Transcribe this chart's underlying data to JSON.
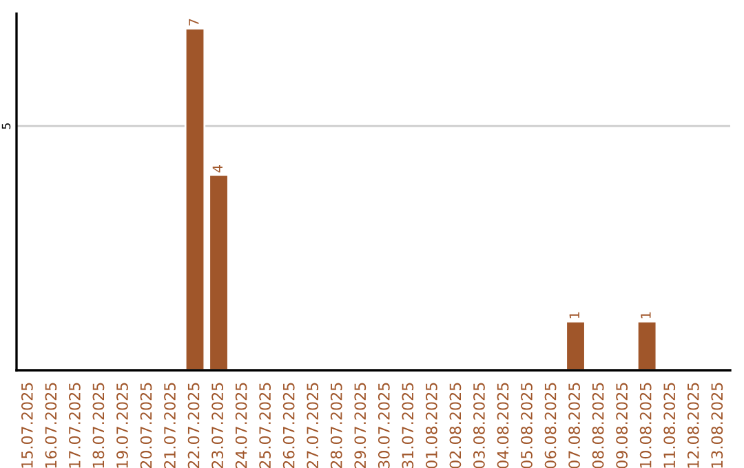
{
  "chart_data": {
    "type": "bar",
    "categories": [
      "15.07.2025",
      "16.07.2025",
      "17.07.2025",
      "18.07.2025",
      "19.07.2025",
      "20.07.2025",
      "21.07.2025",
      "22.07.2025",
      "23.07.2025",
      "24.07.2025",
      "25.07.2025",
      "26.07.2025",
      "27.07.2025",
      "28.07.2025",
      "29.07.2025",
      "30.07.2025",
      "31.07.2025",
      "01.08.2025",
      "02.08.2025",
      "03.08.2025",
      "04.08.2025",
      "05.08.2025",
      "06.08.2025",
      "07.08.2025",
      "08.08.2025",
      "09.08.2025",
      "10.08.2025",
      "11.08.2025",
      "12.08.2025",
      "13.08.2025"
    ],
    "values": [
      null,
      null,
      null,
      null,
      null,
      null,
      null,
      7,
      4,
      null,
      null,
      null,
      null,
      null,
      null,
      null,
      null,
      null,
      null,
      null,
      null,
      null,
      null,
      1,
      null,
      null,
      1,
      null,
      null,
      null
    ],
    "value_labels": [
      null,
      null,
      null,
      null,
      null,
      null,
      null,
      "7",
      "4",
      null,
      null,
      null,
      null,
      null,
      null,
      null,
      null,
      null,
      null,
      null,
      null,
      null,
      null,
      "1",
      null,
      null,
      "1",
      null,
      null,
      null
    ],
    "color": "#a0562a",
    "ylim": [
      0,
      7.3
    ],
    "yticks": [
      5
    ],
    "grid": "y"
  }
}
